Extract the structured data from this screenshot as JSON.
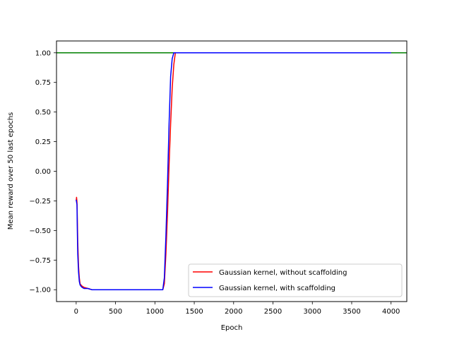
{
  "chart_data": {
    "type": "line",
    "xlabel": "Epoch",
    "ylabel": "Mean reward over 50 last epochs",
    "xlim": [
      -250,
      4200
    ],
    "ylim": [
      -1.1,
      1.1
    ],
    "xticks": [
      0,
      500,
      1000,
      1500,
      2000,
      2500,
      3000,
      3500,
      4000
    ],
    "yticks": [
      -1.0,
      -0.75,
      -0.5,
      -0.25,
      0.0,
      0.25,
      0.5,
      0.75,
      1.0
    ],
    "xtick_labels": [
      "0",
      "500",
      "1000",
      "1500",
      "2000",
      "2500",
      "3000",
      "3500",
      "4000"
    ],
    "ytick_labels": [
      "−1.00",
      "−0.75",
      "−0.50",
      "−0.25",
      "0.00",
      "0.25",
      "0.50",
      "0.75",
      "1.00"
    ],
    "legend_position": "lower-right",
    "reference_line": {
      "y": 1.0,
      "color": "#008000"
    },
    "series": [
      {
        "name": "Gaussian kernel, without scaffolding",
        "color": "#ff0000",
        "x": [
          0,
          5,
          10,
          15,
          20,
          30,
          40,
          50,
          60,
          75,
          100,
          150,
          200,
          250,
          300,
          500,
          800,
          1100,
          1120,
          1140,
          1160,
          1180,
          1200,
          1220,
          1240,
          1260,
          1280,
          1300,
          1500,
          2000,
          3000,
          4000
        ],
        "y": [
          -0.25,
          -0.22,
          -0.26,
          -0.4,
          -0.6,
          -0.8,
          -0.9,
          -0.95,
          -0.96,
          -0.97,
          -0.98,
          -0.99,
          -1.0,
          -1.0,
          -1.0,
          -1.0,
          -1.0,
          -1.0,
          -0.95,
          -0.7,
          -0.35,
          0.05,
          0.4,
          0.7,
          0.9,
          1.0,
          1.0,
          1.0,
          1.0,
          1.0,
          1.0,
          1.0
        ]
      },
      {
        "name": "Gaussian kernel, with scaffolding",
        "color": "#0000ff",
        "x": [
          0,
          5,
          10,
          15,
          20,
          30,
          40,
          50,
          60,
          75,
          100,
          150,
          200,
          250,
          300,
          500,
          800,
          1100,
          1120,
          1140,
          1160,
          1180,
          1200,
          1220,
          1240,
          1260,
          1280,
          1300,
          1500,
          2000,
          3000,
          4000
        ],
        "y": [
          -0.24,
          -0.26,
          -0.28,
          -0.5,
          -0.7,
          -0.85,
          -0.93,
          -0.96,
          -0.97,
          -0.98,
          -0.99,
          -0.99,
          -1.0,
          -1.0,
          -1.0,
          -1.0,
          -1.0,
          -1.0,
          -0.9,
          -0.55,
          -0.1,
          0.4,
          0.8,
          0.95,
          1.0,
          1.0,
          1.0,
          1.0,
          1.0,
          1.0,
          1.0,
          1.0
        ]
      }
    ]
  }
}
